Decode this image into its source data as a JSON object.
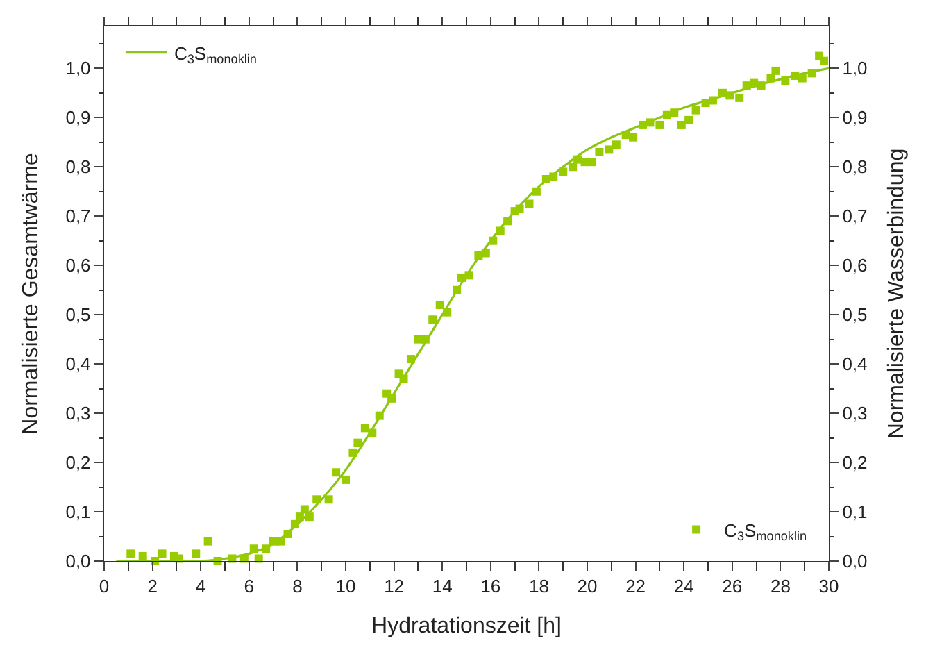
{
  "chart_data": {
    "type": "line",
    "xlabel": "Hydratationszeit [h]",
    "ylabel": "Normalisierte Gesamtwärme",
    "y2label": "Normalisierte Wasserbindung",
    "xlim": [
      0,
      30
    ],
    "xticks": [
      0,
      {
        "value": 1,
        "label": null
      },
      2,
      {
        "value": 3,
        "label": null
      },
      4,
      {
        "value": 5,
        "label": null
      },
      6,
      {
        "value": 7,
        "label": null
      },
      8,
      {
        "value": 9,
        "label": null
      },
      10,
      {
        "value": 11,
        "label": null
      },
      12,
      {
        "value": 13,
        "label": null
      },
      14,
      {
        "value": 15,
        "label": null
      },
      16,
      {
        "value": 17,
        "label": null
      },
      18,
      {
        "value": 19,
        "label": null
      },
      20,
      {
        "value": 21,
        "label": null
      },
      22,
      {
        "value": 23,
        "label": null
      },
      24,
      {
        "value": 25,
        "label": null
      },
      26,
      {
        "value": 27,
        "label": null
      },
      28,
      {
        "value": 29,
        "label": null
      },
      30
    ],
    "ylim": [
      0,
      1.085
    ],
    "yticks": [
      {
        "value": 0,
        "label": "0,0"
      },
      {
        "value": 0.05,
        "label": null
      },
      {
        "value": 0.1,
        "label": "0,1"
      },
      {
        "value": 0.15,
        "label": null
      },
      {
        "value": 0.2,
        "label": "0,2"
      },
      {
        "value": 0.25,
        "label": null
      },
      {
        "value": 0.3,
        "label": "0,3"
      },
      {
        "value": 0.35,
        "label": null
      },
      {
        "value": 0.4,
        "label": "0,4"
      },
      {
        "value": 0.45,
        "label": null
      },
      {
        "value": 0.5,
        "label": "0,5"
      },
      {
        "value": 0.55,
        "label": null
      },
      {
        "value": 0.6,
        "label": "0,6"
      },
      {
        "value": 0.65,
        "label": null
      },
      {
        "value": 0.7,
        "label": "0,7"
      },
      {
        "value": 0.75,
        "label": null
      },
      {
        "value": 0.8,
        "label": "0,8"
      },
      {
        "value": 0.85,
        "label": null
      },
      {
        "value": 0.9,
        "label": "0,9"
      },
      {
        "value": 0.95,
        "label": null
      },
      {
        "value": 1.0,
        "label": "1,0"
      },
      {
        "value": 1.05,
        "label": null
      }
    ],
    "y2lim": [
      0,
      1.085
    ],
    "y2ticks": [
      {
        "value": 0,
        "label": "0,0"
      },
      {
        "value": 0.05,
        "label": null
      },
      {
        "value": 0.1,
        "label": "0,1"
      },
      {
        "value": 0.15,
        "label": null
      },
      {
        "value": 0.2,
        "label": "0,2"
      },
      {
        "value": 0.25,
        "label": null
      },
      {
        "value": 0.3,
        "label": "0,3"
      },
      {
        "value": 0.35,
        "label": null
      },
      {
        "value": 0.4,
        "label": "0,4"
      },
      {
        "value": 0.45,
        "label": null
      },
      {
        "value": 0.5,
        "label": "0,5"
      },
      {
        "value": 0.55,
        "label": null
      },
      {
        "value": 0.6,
        "label": "0,6"
      },
      {
        "value": 0.65,
        "label": null
      },
      {
        "value": 0.7,
        "label": "0,7"
      },
      {
        "value": 0.75,
        "label": null
      },
      {
        "value": 0.8,
        "label": "0,8"
      },
      {
        "value": 0.85,
        "label": null
      },
      {
        "value": 0.9,
        "label": "0,9"
      },
      {
        "value": 0.95,
        "label": null
      },
      {
        "value": 1.0,
        "label": "1,0"
      },
      {
        "value": 1.05,
        "label": null
      }
    ],
    "legend": "top left",
    "series": [
      {
        "name": "C$_{3}$S$_{monoklin}$",
        "color": "#8cc614",
        "marker": "none",
        "line_style": "solid",
        "x": [
          0.5,
          4,
          5,
          6,
          7,
          8,
          9,
          10,
          11,
          12,
          13,
          14,
          15,
          16,
          17,
          18,
          19,
          20,
          21,
          22,
          23,
          24,
          25,
          26,
          27,
          28,
          29,
          30
        ],
        "values": [
          0,
          0,
          0.005,
          0.015,
          0.035,
          0.075,
          0.125,
          0.185,
          0.26,
          0.34,
          0.42,
          0.5,
          0.58,
          0.65,
          0.71,
          0.76,
          0.8,
          0.835,
          0.86,
          0.88,
          0.9,
          0.92,
          0.935,
          0.95,
          0.965,
          0.978,
          0.99,
          1.0
        ]
      },
      {
        "name": "C$_{3}$S$_{monoklin}$",
        "type": "scatter",
        "axis": "y2",
        "color": "#99cc00",
        "marker": "square",
        "x": [
          1.1,
          1.6,
          2.1,
          2.4,
          2.9,
          3.1,
          3.8,
          4.3,
          4.7,
          5.3,
          5.8,
          6.2,
          6.4,
          6.7,
          7.0,
          7.3,
          7.6,
          7.9,
          8.1,
          8.3,
          8.5,
          8.8,
          9.3,
          9.6,
          10.0,
          10.3,
          10.5,
          10.8,
          11.1,
          11.4,
          11.7,
          11.9,
          12.2,
          12.4,
          12.7,
          13.0,
          13.3,
          13.6,
          13.9,
          14.2,
          14.6,
          14.8,
          15.1,
          15.5,
          15.8,
          16.1,
          16.4,
          16.7,
          17.0,
          17.2,
          17.6,
          17.9,
          18.3,
          18.6,
          19.0,
          19.4,
          19.6,
          19.9,
          20.2,
          20.5,
          20.9,
          21.2,
          21.6,
          21.9,
          22.3,
          22.6,
          23.0,
          23.3,
          23.6,
          23.9,
          24.2,
          24.5,
          24.9,
          25.2,
          25.6,
          25.9,
          26.3,
          26.6,
          26.9,
          27.2,
          27.6,
          27.8,
          28.2,
          28.6,
          28.9,
          29.3,
          29.6,
          29.8
        ],
        "values": [
          0.015,
          0.01,
          0.0,
          0.015,
          0.01,
          0.005,
          0.015,
          0.04,
          0.0,
          0.005,
          0.005,
          0.025,
          0.005,
          0.025,
          0.04,
          0.04,
          0.055,
          0.075,
          0.09,
          0.105,
          0.09,
          0.125,
          0.125,
          0.18,
          0.165,
          0.22,
          0.24,
          0.27,
          0.26,
          0.295,
          0.34,
          0.33,
          0.38,
          0.37,
          0.41,
          0.45,
          0.45,
          0.49,
          0.52,
          0.505,
          0.55,
          0.575,
          0.58,
          0.62,
          0.625,
          0.65,
          0.67,
          0.69,
          0.71,
          0.715,
          0.725,
          0.75,
          0.775,
          0.78,
          0.79,
          0.8,
          0.815,
          0.81,
          0.81,
          0.83,
          0.835,
          0.845,
          0.865,
          0.86,
          0.885,
          0.89,
          0.885,
          0.905,
          0.91,
          0.885,
          0.895,
          0.915,
          0.93,
          0.935,
          0.95,
          0.945,
          0.94,
          0.965,
          0.97,
          0.965,
          0.98,
          0.995,
          0.975,
          0.985,
          0.98,
          0.99,
          1.025,
          1.015
        ]
      }
    ]
  }
}
